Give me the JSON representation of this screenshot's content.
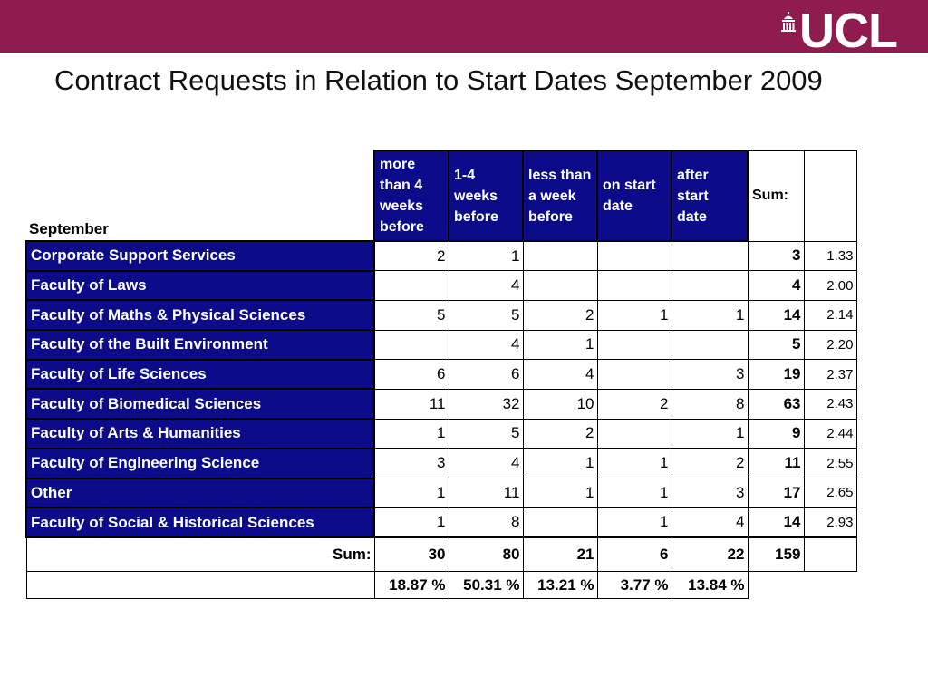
{
  "header": {
    "logo_text": "UCL",
    "logo_icon": "ucl-portico-icon",
    "bar_color": "#8f1b4f"
  },
  "title": "Contract Requests in Relation to Start Dates September 2009",
  "table": {
    "corner_label": "September",
    "columns": [
      "more than 4 weeks before",
      "1-4 weeks before",
      "less than a week before",
      "on start date",
      "after start date"
    ],
    "sum_header": "Sum:",
    "rows": [
      {
        "label": "Corporate Support Services",
        "values": [
          "2",
          "1",
          "",
          "",
          ""
        ],
        "sum": "3",
        "avg": "1.33"
      },
      {
        "label": "Faculty of Laws",
        "values": [
          "",
          "4",
          "",
          "",
          ""
        ],
        "sum": "4",
        "avg": "2.00"
      },
      {
        "label": "Faculty of Maths & Physical Sciences",
        "values": [
          "5",
          "5",
          "2",
          "1",
          "1"
        ],
        "sum": "14",
        "avg": "2.14"
      },
      {
        "label": "Faculty of the Built Environment",
        "values": [
          "",
          "4",
          "1",
          "",
          ""
        ],
        "sum": "5",
        "avg": "2.20"
      },
      {
        "label": "Faculty of Life Sciences",
        "values": [
          "6",
          "6",
          "4",
          "",
          "3"
        ],
        "sum": "19",
        "avg": "2.37"
      },
      {
        "label": "Faculty of Biomedical Sciences",
        "values": [
          "11",
          "32",
          "10",
          "2",
          "8"
        ],
        "sum": "63",
        "avg": "2.43"
      },
      {
        "label": "Faculty of Arts & Humanities",
        "values": [
          "1",
          "5",
          "2",
          "",
          "1"
        ],
        "sum": "9",
        "avg": "2.44"
      },
      {
        "label": "Faculty of Engineering Science",
        "values": [
          "3",
          "4",
          "1",
          "1",
          "2"
        ],
        "sum": "11",
        "avg": "2.55"
      },
      {
        "label": "Other",
        "values": [
          "1",
          "11",
          "1",
          "1",
          "3"
        ],
        "sum": "17",
        "avg": "2.65"
      },
      {
        "label": "Faculty of Social & Historical Sciences",
        "values": [
          "1",
          "8",
          "",
          "1",
          "4"
        ],
        "sum": "14",
        "avg": "2.93"
      }
    ],
    "sum_row": {
      "label": "Sum:",
      "values": [
        "30",
        "80",
        "21",
        "6",
        "22"
      ],
      "total": "159"
    },
    "percent_row": [
      "18.87 %",
      "50.31 %",
      "13.21 %",
      "3.77 %",
      "13.84 %"
    ],
    "colors": {
      "header_fill": "#0c0c8a",
      "header_text": "#ffffff"
    }
  }
}
